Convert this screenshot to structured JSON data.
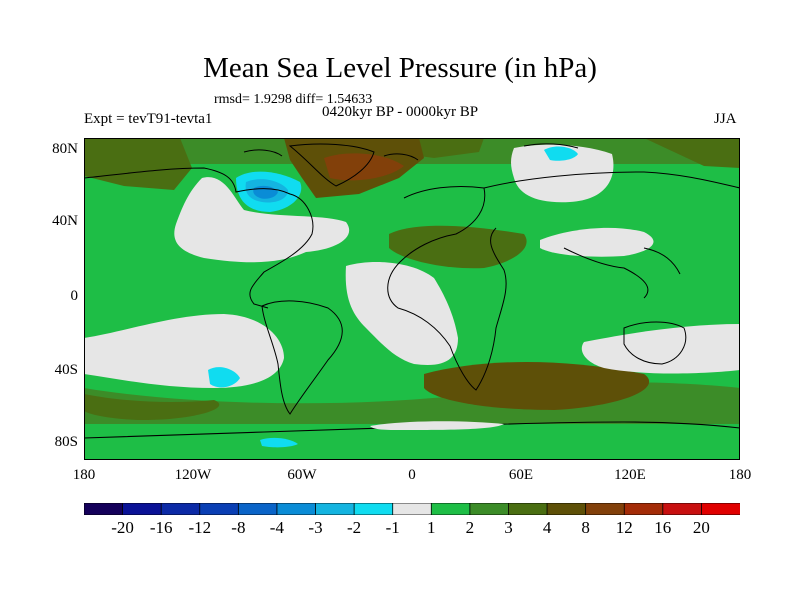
{
  "plot": {
    "title": "Mean Sea Level Pressure (in hPa)",
    "stats": "rmsd= 1.9298 diff= 1.54633",
    "period": "0420kyr BP - 0000kyr BP",
    "experiment": "Expt = tevT91-tevta1",
    "season": "JJA"
  },
  "axes": {
    "lat_labels": [
      "80N",
      "40N",
      "0",
      "40S",
      "80S"
    ],
    "lon_labels": [
      "180",
      "120W",
      "60W",
      "0",
      "60E",
      "120E",
      "180"
    ]
  },
  "colorbar": {
    "labels": [
      "-20",
      "-16",
      "-12",
      "-8",
      "-4",
      "-3",
      "-2",
      "-1",
      "1",
      "2",
      "3",
      "4",
      "8",
      "12",
      "16",
      "20"
    ],
    "colors": [
      "#14005a",
      "#0a1296",
      "#0c2aa6",
      "#0a3fb4",
      "#0a64c8",
      "#0a8cd6",
      "#14b4e0",
      "#10dcf0",
      "#e6e6e6",
      "#1ebe46",
      "#3c8c28",
      "#4a6e12",
      "#5e5008",
      "#82400a",
      "#a42c08",
      "#c81010",
      "#e00000"
    ]
  },
  "field_colors": {
    "neutral": "#e6e6e6",
    "band_1_2": "#1ebe46",
    "band_2_3": "#3c8c28",
    "band_3_4": "#4a6e12",
    "band_4_8": "#5e5008",
    "band_8_12": "#82400a",
    "band_-2_-1": "#10dcf0",
    "band_-3_-2": "#14b4e0",
    "band_-4_-3": "#0a8cd6"
  }
}
